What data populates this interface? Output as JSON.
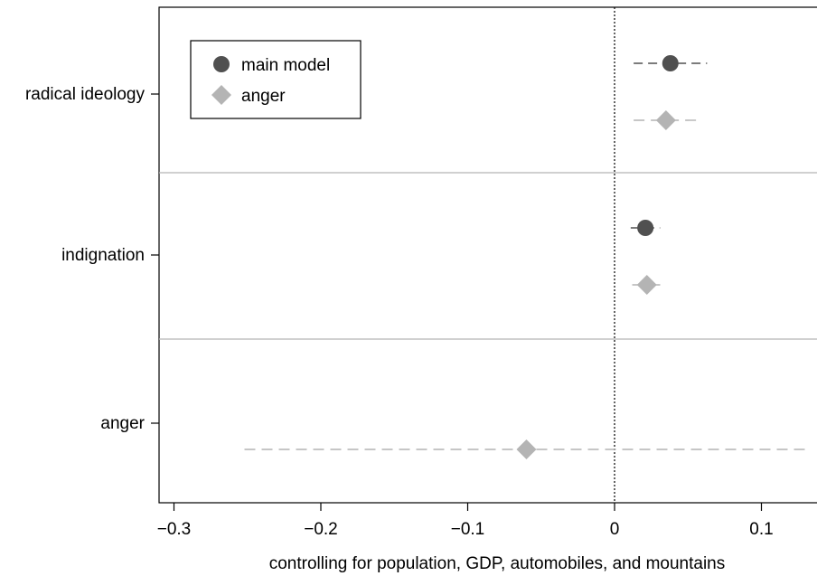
{
  "chart_data": {
    "type": "scatter",
    "subtype": "coefficient-plot",
    "title": "",
    "xlabel": "controlling for population, GDP, automobiles, and mountains",
    "ylabel": "",
    "xlim": [
      -0.31,
      0.14
    ],
    "x_ticks": [
      -0.3,
      -0.2,
      -0.1,
      0,
      0.1
    ],
    "x_tick_labels": [
      "−0.3",
      "−0.2",
      "−0.1",
      "0",
      "0.1"
    ],
    "reference_line_x": 0,
    "categories": [
      "radical ideology",
      "indignation",
      "anger"
    ],
    "series": [
      {
        "name": "main model",
        "marker": "circle",
        "color": "#505050",
        "points": [
          {
            "category": "radical ideology",
            "estimate": 0.038,
            "ci": [
              0.013,
              0.063
            ]
          },
          {
            "category": "indignation",
            "estimate": 0.021,
            "ci": [
              0.011,
              0.031
            ]
          }
        ]
      },
      {
        "name": "anger",
        "marker": "diamond",
        "color": "#b4b4b4",
        "points": [
          {
            "category": "radical ideology",
            "estimate": 0.035,
            "ci": [
              0.013,
              0.057
            ]
          },
          {
            "category": "indignation",
            "estimate": 0.022,
            "ci": [
              0.012,
              0.032
            ]
          },
          {
            "category": "anger",
            "estimate": -0.06,
            "ci": [
              -0.252,
              0.133
            ]
          }
        ]
      }
    ],
    "legend": {
      "position": "top-left",
      "entries": [
        "main model",
        "anger"
      ]
    },
    "grid": false
  }
}
